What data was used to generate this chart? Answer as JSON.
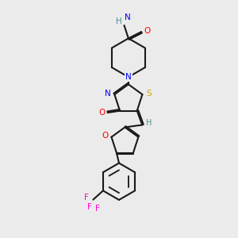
{
  "bg_color": "#ebebeb",
  "atom_colors": {
    "C": "#000000",
    "N": "#0000ff",
    "O": "#ff0000",
    "S": "#ccaa00",
    "F": "#ff00cc",
    "H": "#4a9090"
  },
  "bond_color": "#1a1a1a",
  "lw": 1.5,
  "fs": 7.0,
  "xlim": [
    0,
    10
  ],
  "ylim": [
    0,
    10
  ]
}
